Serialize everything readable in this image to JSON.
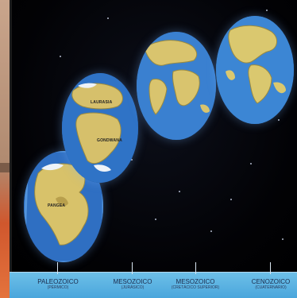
{
  "globes": [
    {
      "labels": [
        "PANGEA"
      ],
      "ocean": "#2f6fc2",
      "land": "#d8c26a"
    },
    {
      "labels": [
        "LAURASIA",
        "GONDWANA"
      ],
      "ocean": "#2f73c6",
      "land": "#d6c06b"
    },
    {
      "labels": [],
      "ocean": "#3a80d0",
      "land": "#d9c46e"
    },
    {
      "labels": [],
      "ocean": "#3c86d4",
      "land": "#dac86f"
    }
  ],
  "timeline": {
    "eras": [
      {
        "name": "PALEOZOICO",
        "sub": "(PÉRMICO)"
      },
      {
        "name": "MESOZOICO",
        "sub": "(JURÁSICO)"
      },
      {
        "name": "MESOZOICO",
        "sub": "(CRETÁCICO SUPERIOR)"
      },
      {
        "name": "CENOZOICO",
        "sub": "(CUATERNARIO)"
      }
    ],
    "color": "#5ab2e2"
  }
}
